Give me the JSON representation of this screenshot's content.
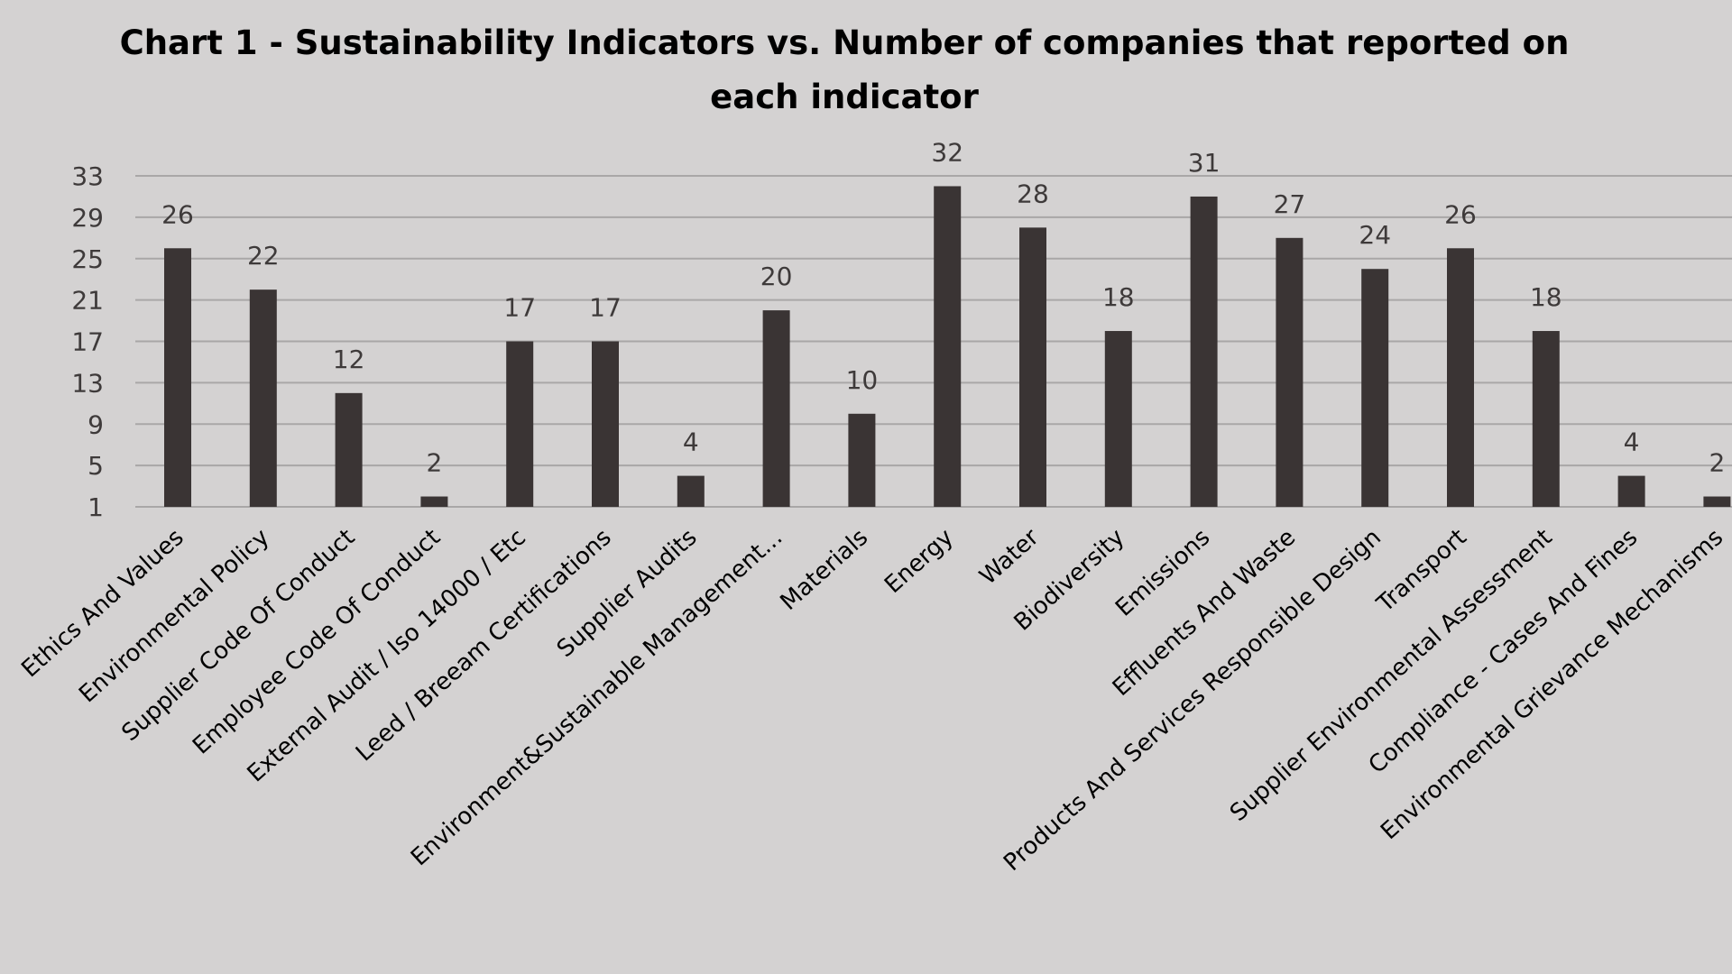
{
  "chart_data": {
    "type": "bar",
    "title_lines": [
      "Chart 1 - Sustainability Indicators vs. Number of companies that reported on",
      "each indicator"
    ],
    "xlabel": "",
    "ylabel": "",
    "ylim": [
      1,
      33
    ],
    "yticks": [
      "1",
      "5",
      "9",
      "13",
      "17",
      "21",
      "25",
      "29",
      "33"
    ],
    "grid": true,
    "legend": "none",
    "bar_color": "#3a3434",
    "categories": [
      "Ethics And Values",
      "Environmental Policy",
      "Supplier Code Of Conduct",
      "Employee Code Of Conduct",
      "External Audit / Iso 14000 / Etc",
      "Leed / Breeam Certifications",
      "Supplier Audits",
      "Environment&Sustainable Management...",
      "Materials",
      "Energy",
      "Water",
      "Biodiversity",
      "Emissions",
      "Effluents And Waste",
      "Products And Services Responsible Design",
      "Transport",
      "Supplier Environmental Assessment",
      "Compliance - Cases And Fines",
      "Environmental Grievance Mechanisms"
    ],
    "values": [
      26,
      22,
      12,
      2,
      17,
      17,
      4,
      20,
      10,
      32,
      28,
      18,
      31,
      27,
      24,
      26,
      18,
      4,
      2
    ]
  }
}
